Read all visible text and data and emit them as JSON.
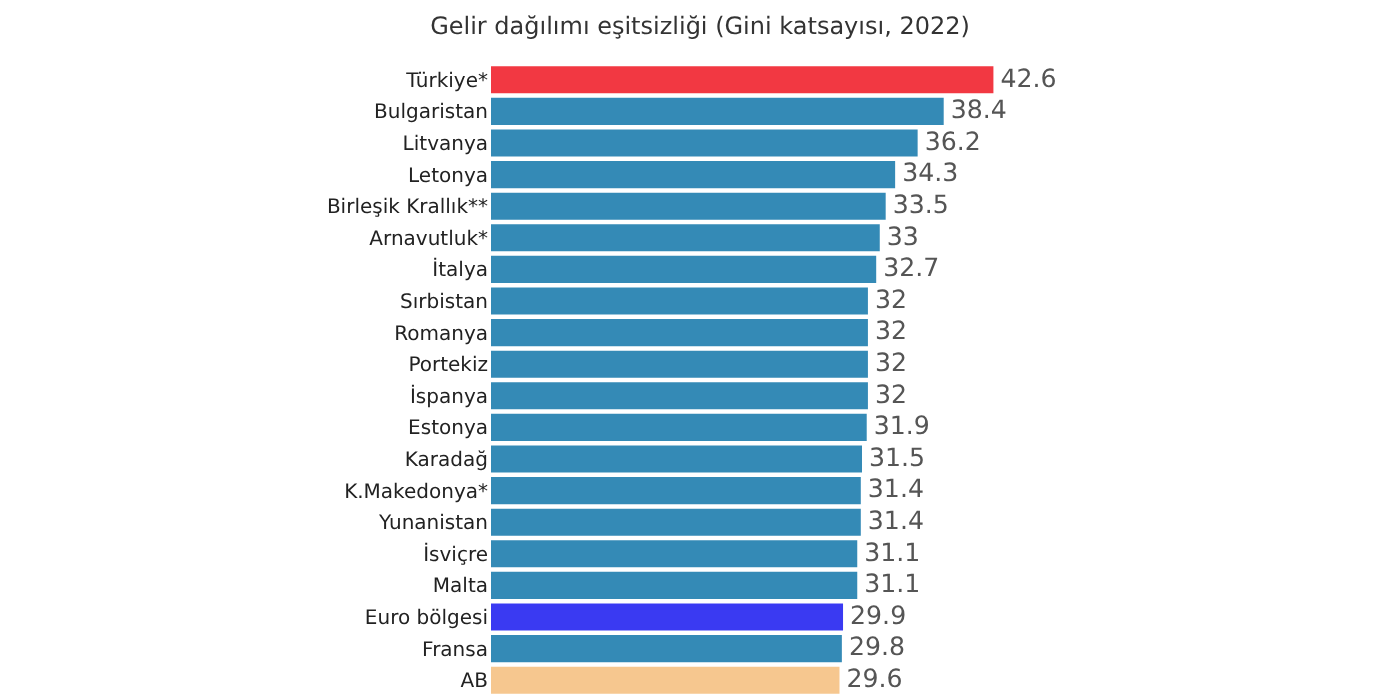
{
  "chart_data": {
    "type": "bar",
    "orientation": "horizontal",
    "title": "Gelir dağılımı eşitsizliği (Gini katsayısı, 2022)",
    "categories": [
      "Türkiye*",
      "Bulgaristan",
      "Litvanya",
      "Letonya",
      "Birleşik Krallık**",
      "Arnavutluk*",
      "İtalya",
      "Sırbistan",
      "Romanya",
      "Portekiz",
      "İspanya",
      "Estonya",
      "Karadağ",
      "K.Makedonya*",
      "Yunanistan",
      "İsviçre",
      "Malta",
      "Euro bölgesi",
      "Fransa",
      "AB"
    ],
    "values": [
      42.6,
      38.4,
      36.2,
      34.3,
      33.5,
      33,
      32.7,
      32,
      32,
      32,
      32,
      31.9,
      31.5,
      31.4,
      31.4,
      31.1,
      31.1,
      29.9,
      29.8,
      29.6
    ],
    "colors": [
      "#f23842",
      "#348ab6",
      "#348ab6",
      "#348ab6",
      "#348ab6",
      "#348ab6",
      "#348ab6",
      "#348ab6",
      "#348ab6",
      "#348ab6",
      "#348ab6",
      "#348ab6",
      "#348ab6",
      "#348ab6",
      "#348ab6",
      "#348ab6",
      "#348ab6",
      "#3a3af2",
      "#348ab6",
      "#f6c78f"
    ],
    "data_labels": true
  }
}
